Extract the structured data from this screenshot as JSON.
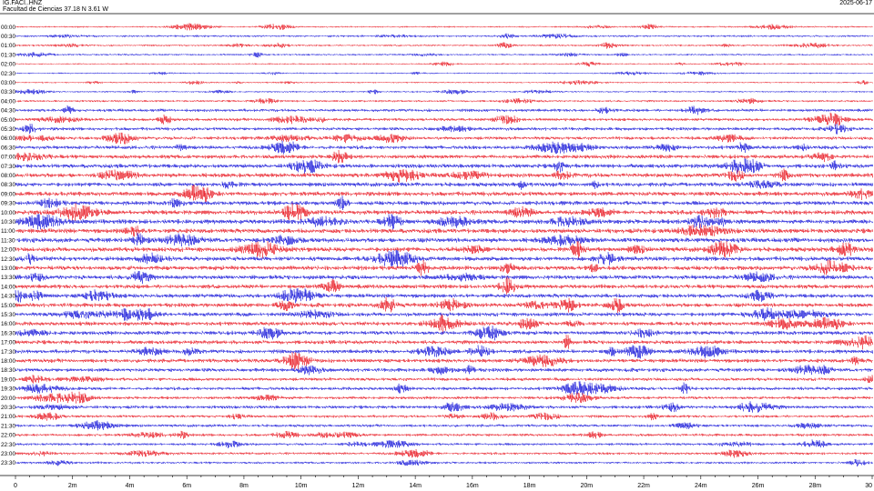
{
  "header": {
    "station": "IG.FACI..HNZ",
    "location": "Facultad de Ciencias  37.18 N 3.61 W",
    "date": "2025-06-17"
  },
  "chart_data": {
    "type": "line",
    "subtype": "helicorder",
    "row_labels": [
      "00:00",
      "00:30",
      "01:00",
      "01:30",
      "02:00",
      "02:30",
      "03:00",
      "03:30",
      "04:00",
      "04:30",
      "05:00",
      "05:30",
      "06:00",
      "06:30",
      "07:00",
      "07:30",
      "08:00",
      "08:30",
      "09:00",
      "09:30",
      "10:00",
      "10:30",
      "11:00",
      "11:30",
      "12:00",
      "12:30",
      "13:00",
      "13:30",
      "14:00",
      "14:30",
      "15:00",
      "15:30",
      "16:00",
      "16:30",
      "17:00",
      "17:30",
      "18:00",
      "18:30",
      "19:00",
      "19:30",
      "20:00",
      "20:30",
      "21:00",
      "21:30",
      "22:00",
      "22:30",
      "23:00",
      "23:30"
    ],
    "row_minutes": 30,
    "x_tick_labels": [
      "0",
      "2m",
      "4m",
      "6m",
      "8m",
      "10m",
      "12m",
      "14m",
      "16m",
      "18m",
      "20m",
      "22m",
      "24m",
      "26m",
      "28m",
      "30"
    ],
    "xlim": [
      0,
      30
    ],
    "colors": [
      "#e8121c",
      "#1010d8"
    ],
    "relative_amplitude": [
      0.25,
      0.35,
      0.3,
      0.3,
      0.2,
      0.2,
      0.2,
      0.25,
      0.35,
      0.55,
      0.55,
      0.6,
      0.6,
      0.7,
      0.75,
      0.8,
      0.85,
      0.8,
      0.85,
      0.8,
      0.9,
      0.9,
      0.9,
      0.9,
      0.9,
      0.85,
      0.85,
      0.85,
      0.8,
      0.8,
      0.8,
      0.75,
      0.75,
      0.75,
      0.75,
      0.75,
      0.75,
      0.7,
      0.6,
      0.6,
      0.55,
      0.6,
      0.5,
      0.5,
      0.5,
      0.45,
      0.45,
      0.4
    ]
  }
}
